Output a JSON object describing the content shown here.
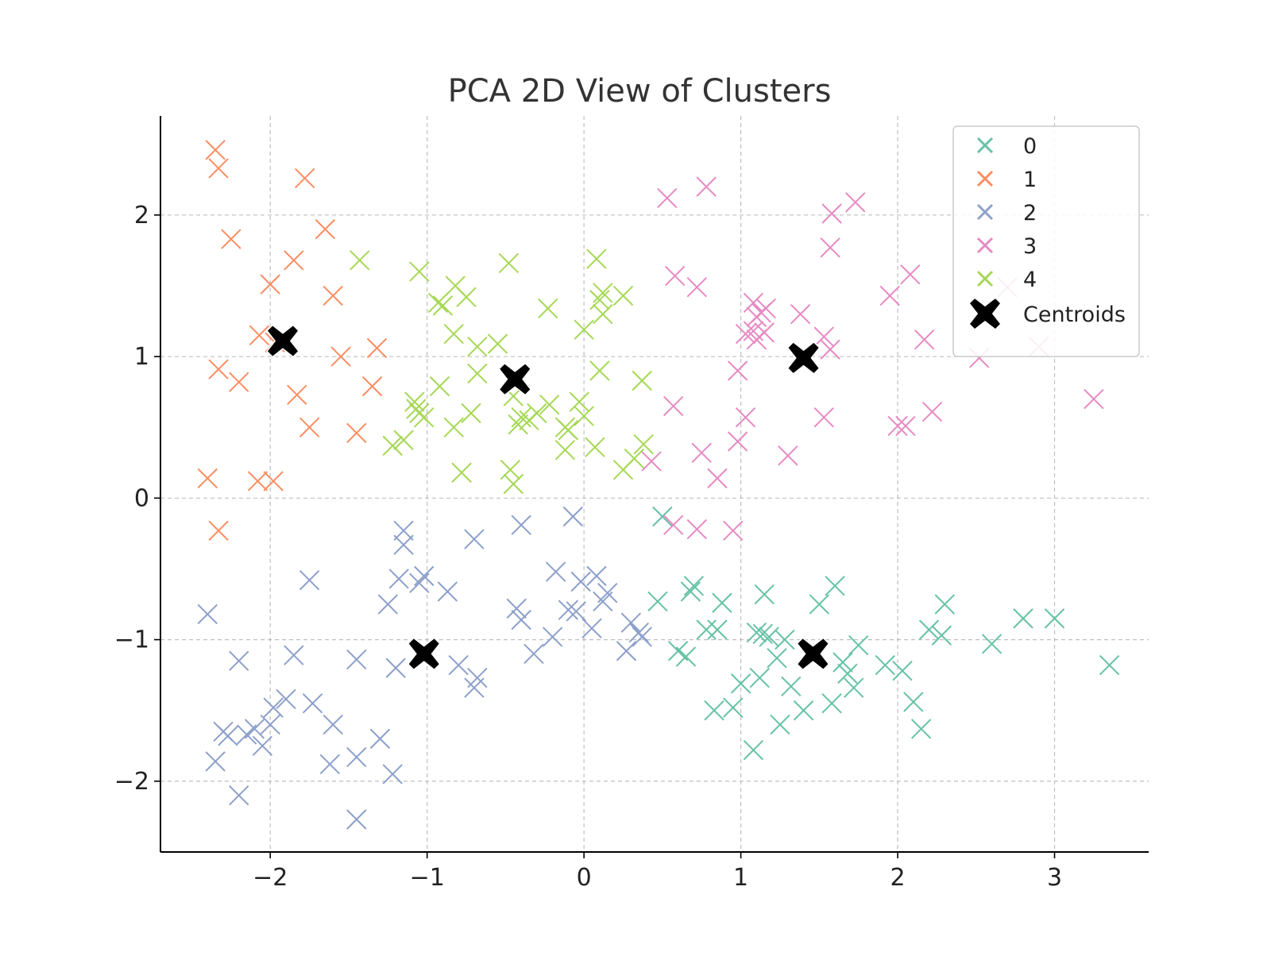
{
  "chart_data": {
    "type": "scatter",
    "title": "PCA 2D View of Clusters",
    "xlabel": "",
    "ylabel": "",
    "xlim": [
      -2.7,
      3.6
    ],
    "ylim": [
      -2.5,
      2.7
    ],
    "xticks": [
      -2,
      -1,
      0,
      1,
      2,
      3
    ],
    "yticks": [
      -2,
      -1,
      0,
      1,
      2
    ],
    "xtick_labels": [
      "−2",
      "−1",
      "0",
      "1",
      "2",
      "3"
    ],
    "ytick_labels": [
      "−2",
      "−1",
      "0",
      "1",
      "2"
    ],
    "grid": true,
    "grid_style": "dashed",
    "legend_position": "top-right",
    "marker": "x",
    "series": [
      {
        "name": "0",
        "color": "#66c2a5",
        "points": [
          [
            0.5,
            -0.13
          ],
          [
            0.47,
            -0.73
          ],
          [
            0.6,
            -1.08
          ],
          [
            0.65,
            -1.12
          ],
          [
            0.68,
            -0.66
          ],
          [
            0.7,
            -0.62
          ],
          [
            0.78,
            -0.93
          ],
          [
            0.85,
            -0.93
          ],
          [
            0.88,
            -0.74
          ],
          [
            0.83,
            -1.5
          ],
          [
            0.95,
            -1.48
          ],
          [
            1.0,
            -1.31
          ],
          [
            1.08,
            -1.78
          ],
          [
            1.1,
            -0.95
          ],
          [
            1.12,
            -1.27
          ],
          [
            1.14,
            -0.96
          ],
          [
            1.15,
            -0.68
          ],
          [
            1.18,
            -0.98
          ],
          [
            1.23,
            -1.13
          ],
          [
            1.25,
            -1.6
          ],
          [
            1.28,
            -1.0
          ],
          [
            1.32,
            -1.33
          ],
          [
            1.4,
            -1.5
          ],
          [
            1.5,
            -0.75
          ],
          [
            1.58,
            -1.45
          ],
          [
            1.6,
            -0.62
          ],
          [
            1.65,
            -1.16
          ],
          [
            1.68,
            -1.24
          ],
          [
            1.72,
            -1.34
          ],
          [
            1.75,
            -1.04
          ],
          [
            1.92,
            -1.18
          ],
          [
            2.03,
            -1.22
          ],
          [
            2.1,
            -1.44
          ],
          [
            2.15,
            -1.63
          ],
          [
            2.2,
            -0.93
          ],
          [
            2.28,
            -0.97
          ],
          [
            2.3,
            -0.75
          ],
          [
            2.6,
            -1.03
          ],
          [
            2.8,
            -0.85
          ],
          [
            3.0,
            -0.85
          ],
          [
            3.35,
            -1.18
          ]
        ]
      },
      {
        "name": "1",
        "color": "#fc8d62",
        "points": [
          [
            -2.35,
            2.46
          ],
          [
            -2.33,
            2.33
          ],
          [
            -1.78,
            2.26
          ],
          [
            -1.65,
            1.9
          ],
          [
            -2.25,
            1.83
          ],
          [
            -1.85,
            1.68
          ],
          [
            -2.0,
            1.51
          ],
          [
            -1.6,
            1.43
          ],
          [
            -2.07,
            1.15
          ],
          [
            -1.97,
            1.1
          ],
          [
            -1.55,
            1.0
          ],
          [
            -1.32,
            1.06
          ],
          [
            -2.33,
            0.91
          ],
          [
            -2.2,
            0.82
          ],
          [
            -1.35,
            0.79
          ],
          [
            -1.83,
            0.73
          ],
          [
            -1.75,
            0.5
          ],
          [
            -1.45,
            0.46
          ],
          [
            -2.4,
            0.14
          ],
          [
            -2.08,
            0.12
          ],
          [
            -1.98,
            0.12
          ],
          [
            -2.33,
            -0.23
          ]
        ]
      },
      {
        "name": "2",
        "color": "#8da0cb",
        "points": [
          [
            -1.15,
            -0.23
          ],
          [
            -1.15,
            -0.33
          ],
          [
            -0.7,
            -0.29
          ],
          [
            -0.4,
            -0.19
          ],
          [
            -0.07,
            -0.13
          ],
          [
            -1.75,
            -0.58
          ],
          [
            -1.18,
            -0.57
          ],
          [
            -1.05,
            -0.6
          ],
          [
            -1.02,
            -0.55
          ],
          [
            -0.87,
            -0.66
          ],
          [
            -0.18,
            -0.52
          ],
          [
            -0.02,
            -0.59
          ],
          [
            0.08,
            -0.55
          ],
          [
            0.12,
            -0.73
          ],
          [
            0.15,
            -0.67
          ],
          [
            -1.25,
            -0.75
          ],
          [
            -0.43,
            -0.78
          ],
          [
            -0.4,
            -0.86
          ],
          [
            -0.1,
            -0.79
          ],
          [
            -0.05,
            -0.8
          ],
          [
            0.05,
            -0.92
          ],
          [
            0.3,
            -0.88
          ],
          [
            0.37,
            -0.98
          ],
          [
            0.35,
            -0.95
          ],
          [
            -0.2,
            -0.98
          ],
          [
            -0.32,
            -1.1
          ],
          [
            -0.8,
            -1.18
          ],
          [
            -0.68,
            -1.27
          ],
          [
            -0.7,
            -1.34
          ],
          [
            0.27,
            -1.08
          ],
          [
            -1.2,
            -1.2
          ],
          [
            -1.45,
            -1.14
          ],
          [
            -1.85,
            -1.11
          ],
          [
            -2.2,
            -1.15
          ],
          [
            -2.4,
            -0.82
          ],
          [
            -1.9,
            -1.42
          ],
          [
            -1.98,
            -1.48
          ],
          [
            -1.73,
            -1.45
          ],
          [
            -1.6,
            -1.6
          ],
          [
            -2.0,
            -1.6
          ],
          [
            -2.1,
            -1.63
          ],
          [
            -2.15,
            -1.67
          ],
          [
            -2.3,
            -1.65
          ],
          [
            -2.27,
            -1.68
          ],
          [
            -2.05,
            -1.75
          ],
          [
            -2.35,
            -1.86
          ],
          [
            -1.62,
            -1.88
          ],
          [
            -1.45,
            -1.83
          ],
          [
            -1.3,
            -1.7
          ],
          [
            -1.22,
            -1.95
          ],
          [
            -2.2,
            -2.1
          ],
          [
            -1.45,
            -2.27
          ]
        ]
      },
      {
        "name": "3",
        "color": "#e78ac3",
        "points": [
          [
            0.53,
            2.12
          ],
          [
            0.78,
            2.2
          ],
          [
            1.58,
            2.01
          ],
          [
            1.73,
            2.09
          ],
          [
            1.57,
            1.77
          ],
          [
            0.58,
            1.57
          ],
          [
            0.72,
            1.49
          ],
          [
            1.08,
            1.38
          ],
          [
            1.13,
            1.31
          ],
          [
            1.1,
            1.28
          ],
          [
            1.16,
            1.34
          ],
          [
            1.38,
            1.3
          ],
          [
            1.95,
            1.43
          ],
          [
            2.08,
            1.58
          ],
          [
            2.7,
            1.49
          ],
          [
            1.03,
            1.16
          ],
          [
            1.08,
            1.18
          ],
          [
            1.1,
            1.12
          ],
          [
            1.15,
            1.17
          ],
          [
            1.53,
            1.14
          ],
          [
            1.57,
            1.05
          ],
          [
            2.17,
            1.12
          ],
          [
            2.52,
            0.99
          ],
          [
            2.9,
            1.07
          ],
          [
            0.98,
            0.9
          ],
          [
            0.57,
            0.65
          ],
          [
            1.03,
            0.57
          ],
          [
            1.53,
            0.57
          ],
          [
            2.0,
            0.51
          ],
          [
            2.05,
            0.51
          ],
          [
            2.22,
            0.61
          ],
          [
            3.25,
            0.7
          ],
          [
            0.43,
            0.26
          ],
          [
            0.75,
            0.32
          ],
          [
            0.85,
            0.14
          ],
          [
            1.3,
            0.3
          ],
          [
            0.98,
            0.4
          ],
          [
            0.57,
            -0.19
          ],
          [
            0.72,
            -0.22
          ],
          [
            0.95,
            -0.23
          ]
        ]
      },
      {
        "name": "4",
        "color": "#a6d854",
        "points": [
          [
            -1.43,
            1.68
          ],
          [
            -1.05,
            1.6
          ],
          [
            -0.48,
            1.66
          ],
          [
            0.08,
            1.69
          ],
          [
            -0.82,
            1.5
          ],
          [
            -0.93,
            1.38
          ],
          [
            -0.9,
            1.36
          ],
          [
            -0.75,
            1.42
          ],
          [
            0.1,
            1.4
          ],
          [
            0.12,
            1.45
          ],
          [
            0.25,
            1.43
          ],
          [
            -0.23,
            1.34
          ],
          [
            0.12,
            1.3
          ],
          [
            -0.83,
            1.16
          ],
          [
            0.0,
            1.19
          ],
          [
            -0.68,
            1.07
          ],
          [
            -0.55,
            1.09
          ],
          [
            0.1,
            0.9
          ],
          [
            -0.68,
            0.88
          ],
          [
            -0.45,
            0.72
          ],
          [
            0.37,
            0.83
          ],
          [
            -0.92,
            0.79
          ],
          [
            -1.08,
            0.68
          ],
          [
            -1.07,
            0.63
          ],
          [
            -1.05,
            0.6
          ],
          [
            -1.02,
            0.57
          ],
          [
            -0.72,
            0.6
          ],
          [
            -0.4,
            0.57
          ],
          [
            -0.35,
            0.55
          ],
          [
            -0.3,
            0.6
          ],
          [
            -0.22,
            0.66
          ],
          [
            -0.03,
            0.68
          ],
          [
            -0.42,
            0.52
          ],
          [
            0.0,
            0.58
          ],
          [
            -0.12,
            0.5
          ],
          [
            -0.1,
            0.48
          ],
          [
            -0.83,
            0.5
          ],
          [
            -1.15,
            0.41
          ],
          [
            -1.22,
            0.37
          ],
          [
            0.07,
            0.36
          ],
          [
            -0.12,
            0.34
          ],
          [
            0.38,
            0.38
          ],
          [
            0.32,
            0.28
          ],
          [
            -0.78,
            0.18
          ],
          [
            0.25,
            0.2
          ],
          [
            -0.47,
            0.2
          ],
          [
            -0.45,
            0.1
          ]
        ]
      }
    ],
    "centroids": {
      "name": "Centroids",
      "color": "#000000",
      "points": [
        [
          -1.92,
          1.11
        ],
        [
          -0.44,
          0.84
        ],
        [
          1.4,
          0.99
        ],
        [
          -1.02,
          -1.1
        ],
        [
          1.46,
          -1.1
        ]
      ]
    }
  }
}
